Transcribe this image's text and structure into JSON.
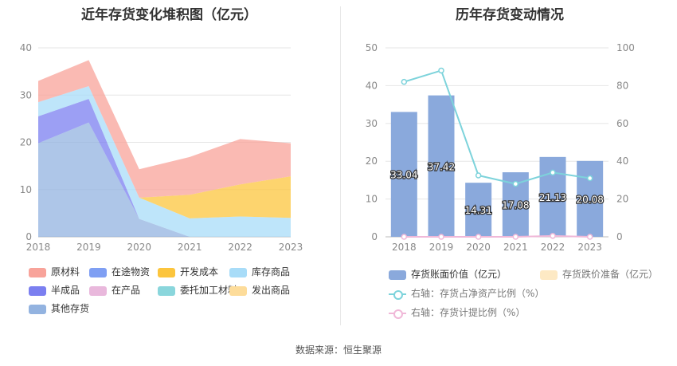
{
  "source_text": "数据来源：恒生聚源",
  "chart_data": [
    {
      "type": "area",
      "title": "近年存货变化堆积图（亿元）",
      "categories": [
        "2018",
        "2019",
        "2020",
        "2021",
        "2022",
        "2023"
      ],
      "ylim": [
        0,
        40
      ],
      "yticks": [
        0,
        10,
        20,
        30,
        40
      ],
      "grid": true,
      "legend_position": "bottom",
      "series": [
        {
          "name": "原材料",
          "color": "#f8a39a",
          "values": [
            4.5,
            5.5,
            6.0,
            8.0,
            9.6,
            7.0
          ]
        },
        {
          "name": "在途物资",
          "color": "#7f9ff3",
          "values": [
            0,
            0,
            0,
            0,
            0,
            0
          ]
        },
        {
          "name": "开发成本",
          "color": "#fcc53d",
          "values": [
            0,
            0,
            0,
            5.0,
            6.8,
            8.8
          ]
        },
        {
          "name": "库存商品",
          "color": "#a8dcf8",
          "values": [
            3.0,
            2.7,
            4.5,
            3.9,
            4.3,
            4.0
          ]
        },
        {
          "name": "半成品",
          "color": "#7b7ff0",
          "values": [
            5.7,
            5.0,
            0,
            0,
            0,
            0
          ]
        },
        {
          "name": "在产品",
          "color": "#e9b8dc",
          "values": [
            0,
            0,
            0,
            0,
            0,
            0
          ]
        },
        {
          "name": "委托加工材料",
          "color": "#8ad6dc",
          "values": [
            0,
            0,
            0,
            0,
            0,
            0
          ]
        },
        {
          "name": "发出商品",
          "color": "#fddc9a",
          "values": [
            0,
            0,
            0,
            0,
            0,
            0
          ]
        },
        {
          "name": "其他存货",
          "color": "#93b3e0",
          "values": [
            19.8,
            24.2,
            3.8,
            0,
            0,
            0
          ]
        }
      ]
    },
    {
      "type": "bar",
      "title": "历年存货变动情况",
      "categories": [
        "2018",
        "2019",
        "2020",
        "2021",
        "2022",
        "2023"
      ],
      "ylim": [
        0,
        50
      ],
      "yticks": [
        0,
        10,
        20,
        30,
        40,
        50
      ],
      "y2lim": [
        0,
        100
      ],
      "y2ticks": [
        0,
        20,
        40,
        60,
        80,
        100
      ],
      "grid": true,
      "legend_position": "bottom",
      "series": [
        {
          "name": "存货账面价值（亿元）",
          "kind": "bar",
          "axis": "left",
          "color": "#8aa9dc",
          "values": [
            33.04,
            37.42,
            14.31,
            17.08,
            21.13,
            20.08
          ],
          "labels": [
            "33.04",
            "37.42",
            "14.31",
            "17.08",
            "21.13",
            "20.08"
          ]
        },
        {
          "name": "存货跌价准备（亿元）",
          "kind": "bar",
          "axis": "left",
          "color": "#fde9c4",
          "values": [
            0,
            0,
            0,
            0,
            0,
            0
          ]
        },
        {
          "name": "右轴：存货占净资产比例（%）",
          "kind": "line",
          "axis": "right",
          "color": "#7dd3db",
          "values": [
            82,
            88,
            32.5,
            28,
            34,
            31
          ]
        },
        {
          "name": "右轴：存货计提比例（%）",
          "kind": "line",
          "axis": "right",
          "color": "#f0b8d8",
          "values": [
            0,
            0,
            0,
            0,
            0.5,
            0
          ]
        }
      ]
    }
  ]
}
